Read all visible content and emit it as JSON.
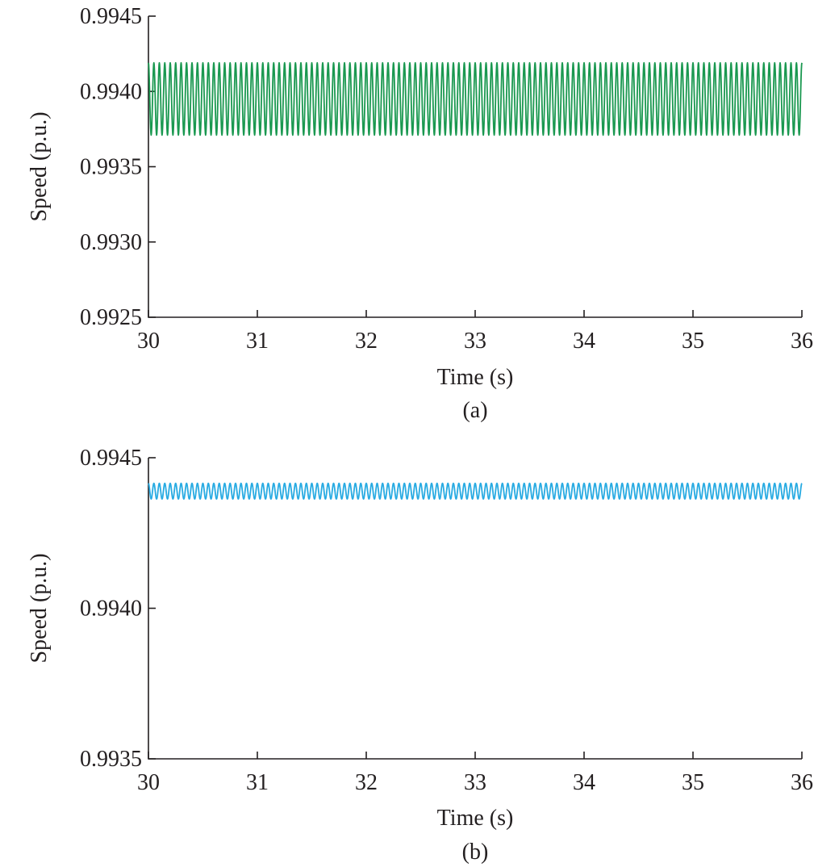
{
  "chart_data": [
    {
      "type": "line",
      "caption": "(a)",
      "xlabel": "Time (s)",
      "ylabel": "Speed (p.u.)",
      "xlim": [
        30,
        36
      ],
      "ylim": [
        0.9925,
        0.9945
      ],
      "xticks": [
        30,
        31,
        32,
        33,
        34,
        35,
        36
      ],
      "xtick_labels": [
        "30",
        "31",
        "32",
        "33",
        "34",
        "35",
        "36"
      ],
      "yticks": [
        0.9925,
        0.993,
        0.9935,
        0.994,
        0.9945
      ],
      "ytick_labels": [
        "0.9925",
        "0.9930",
        "0.9935",
        "0.9940",
        "0.9945"
      ],
      "grid": false,
      "series": [
        {
          "color": "#1a9850",
          "shape": "sinusoidal oscillation",
          "center": 0.99395,
          "amplitude": 0.00024,
          "frequency_hz": 20,
          "x_start": 30,
          "x_end": 36
        }
      ]
    },
    {
      "type": "line",
      "caption": "(b)",
      "xlabel": "Time (s)",
      "ylabel": "Speed (p.u.)",
      "xlim": [
        30,
        36
      ],
      "ylim": [
        0.9935,
        0.9945
      ],
      "xticks": [
        30,
        31,
        32,
        33,
        34,
        35,
        36
      ],
      "xtick_labels": [
        "30",
        "31",
        "32",
        "33",
        "34",
        "35",
        "36"
      ],
      "yticks": [
        0.9935,
        0.994,
        0.9945
      ],
      "ytick_labels": [
        "0.9935",
        "0.9940",
        "0.9945"
      ],
      "grid": false,
      "series": [
        {
          "color": "#29abe2",
          "shape": "sinusoidal oscillation",
          "center": 0.994389,
          "amplitude": 2.6e-05,
          "frequency_hz": 20,
          "x_start": 30,
          "x_end": 36
        }
      ]
    }
  ]
}
